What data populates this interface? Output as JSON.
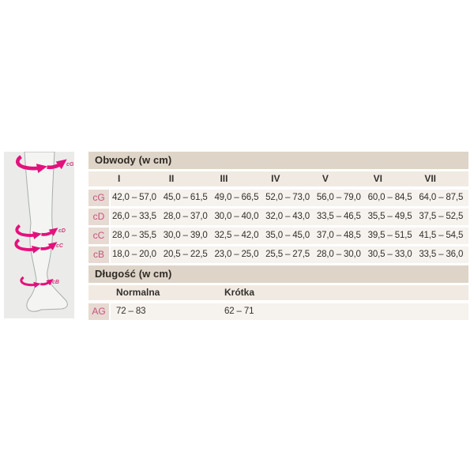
{
  "colors": {
    "accent_pink": "#e4117c",
    "diagram_label_pink": "#d4367f",
    "row_label_pink": "#c6527f",
    "section_bar_bg": "#ded4c8",
    "column_header_bg": "#f1eae3",
    "data_row_bg": "#f6f2ee",
    "row_label_cell_bg": "#e7dad2",
    "leg_panel_bg": "#ebecea",
    "text": "#33302b"
  },
  "leg_diagram": {
    "marker_labels": [
      "cG",
      "cD",
      "cC",
      "cB"
    ]
  },
  "chart_data": [
    {
      "type": "table",
      "title": "Obwody (w cm)",
      "columns": [
        "I",
        "II",
        "III",
        "IV",
        "V",
        "VI",
        "VII"
      ],
      "rows": [
        {
          "label": "cG",
          "values": [
            "42,0 – 57,0",
            "45,0 – 61,5",
            "49,0 – 66,5",
            "52,0 – 73,0",
            "56,0 – 79,0",
            "60,0 – 84,5",
            "64,0 – 87,5"
          ]
        },
        {
          "label": "cD",
          "values": [
            "26,0 – 33,5",
            "28,0 – 37,0",
            "30,0 – 40,0",
            "32,0 – 43,0",
            "33,5 – 46,5",
            "35,5 – 49,5",
            "37,5 – 52,5"
          ]
        },
        {
          "label": "cC",
          "values": [
            "28,0 – 35,5",
            "30,0 – 39,0",
            "32,5 – 42,0",
            "35,0 – 45,0",
            "37,0 – 48,5",
            "39,5 – 51,5",
            "41,5 – 54,5"
          ]
        },
        {
          "label": "cB",
          "values": [
            "18,0 – 20,0",
            "20,5 – 22,5",
            "23,0 – 25,0",
            "25,5 – 27,5",
            "28,0 – 30,0",
            "30,5 – 33,0",
            "33,5 – 36,0"
          ]
        }
      ]
    },
    {
      "type": "table",
      "title": "Długość (w cm)",
      "columns": [
        "Normalna",
        "Krótka"
      ],
      "rows": [
        {
          "label": "AG",
          "values": [
            "72 – 83",
            "62 – 71"
          ]
        }
      ]
    }
  ]
}
